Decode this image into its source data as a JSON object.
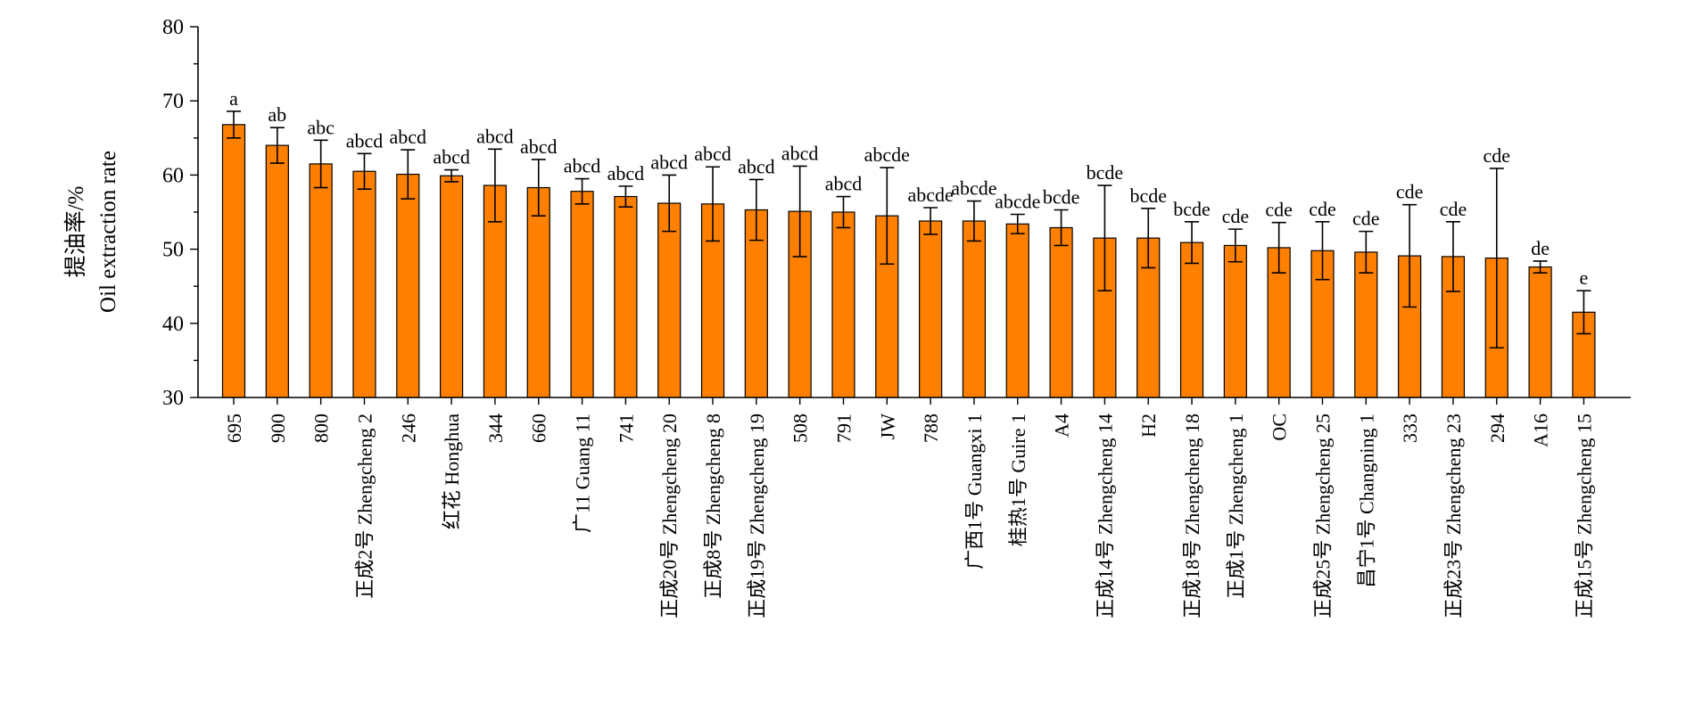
{
  "chart_data": {
    "type": "bar",
    "ylabel_cn": "提油率/%",
    "ylabel_en": "Oil extraction rate",
    "ylim": [
      30,
      80
    ],
    "yticks": [
      30,
      40,
      50,
      60,
      70,
      80
    ],
    "bar_color": "#FF8000",
    "categories": [
      "695",
      "900",
      "800",
      "正成2号 Zhengcheng 2",
      "246",
      "红花 Honghua",
      "344",
      "660",
      "广11 Guang 11",
      "741",
      "正成20号 Zhengcheng 20",
      "正成8号 Zhengcheng 8",
      "正成19号 Zhengcheng 19",
      "508",
      "791",
      "JW",
      "788",
      "广西1号 Guangxi 1",
      "桂热1号 Guire 1",
      "A4",
      "正成14号 Zhengcheng 14",
      "H2",
      "正成18号 Zhengcheng 18",
      "正成1号 Zhengcheng 1",
      "OC",
      "正成25号 Zhengcheng 25",
      "昌宁1号 Changning 1",
      "333",
      "正成23号 Zhengcheng 23",
      "294",
      "A16",
      "正成15号 Zhengcheng 15"
    ],
    "values": [
      66.8,
      64.0,
      61.5,
      60.5,
      60.1,
      59.9,
      58.6,
      58.3,
      57.8,
      57.1,
      56.2,
      56.1,
      55.3,
      55.1,
      55.0,
      54.5,
      53.8,
      53.8,
      53.4,
      52.9,
      51.5,
      51.5,
      50.9,
      50.5,
      50.2,
      49.8,
      49.6,
      49.1,
      49.0,
      48.8,
      47.6,
      41.5
    ],
    "errors": [
      1.8,
      2.4,
      3.2,
      2.4,
      3.3,
      0.8,
      4.9,
      3.8,
      1.7,
      1.4,
      3.8,
      5.0,
      4.1,
      6.1,
      2.1,
      6.5,
      1.8,
      2.7,
      1.3,
      2.4,
      7.1,
      4.0,
      2.8,
      2.2,
      3.4,
      3.9,
      2.8,
      6.9,
      4.7,
      12.1,
      0.8,
      2.9
    ],
    "sig_labels": [
      "a",
      "ab",
      "abc",
      "abcd",
      "abcd",
      "abcd",
      "abcd",
      "abcd",
      "abcd",
      "abcd",
      "abcd",
      "abcd",
      "abcd",
      "abcd",
      "abcd",
      "abcde",
      "abcde",
      "abcde",
      "abcde",
      "bcde",
      "bcde",
      "bcde",
      "bcde",
      "cde",
      "cde",
      "cde",
      "cde",
      "cde",
      "cde",
      "cde",
      "de",
      "e"
    ]
  }
}
